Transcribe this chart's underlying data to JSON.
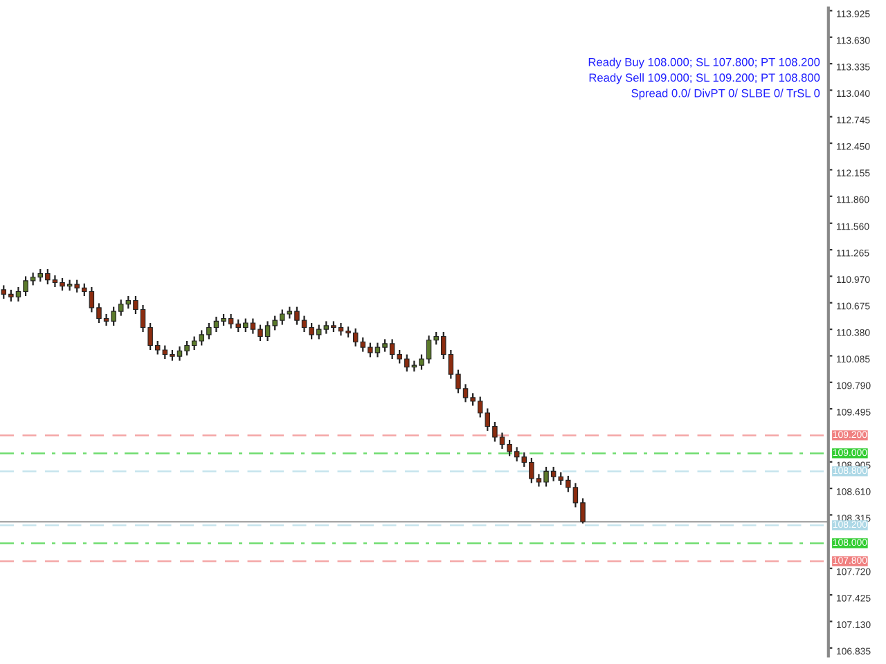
{
  "chart_data": {
    "type": "candlestick",
    "categories": [
      null,
      null,
      null,
      null,
      null,
      null,
      null,
      null,
      null,
      null,
      null,
      null,
      null,
      null,
      null,
      null,
      null,
      null,
      null,
      null,
      null,
      null,
      null,
      null,
      null,
      null,
      null,
      null,
      null,
      null,
      null,
      null,
      null,
      null,
      null,
      null,
      null,
      null,
      null,
      null,
      null,
      null,
      null,
      null,
      null,
      null,
      null,
      null,
      null,
      null,
      null,
      null,
      null,
      null,
      null,
      null,
      null,
      null,
      null,
      null,
      null,
      null,
      null,
      null,
      null,
      null,
      null,
      null,
      null,
      null,
      null,
      null,
      null,
      null,
      null,
      null,
      null,
      null,
      null,
      null,
      null,
      null,
      null,
      null,
      null,
      null,
      null,
      null,
      null,
      null,
      null,
      null,
      null,
      null,
      null,
      null,
      null,
      null,
      null,
      null,
      null,
      null,
      null,
      null,
      null,
      null,
      null,
      null,
      null,
      null,
      null,
      null,
      null
    ],
    "ohlc": [
      [
        110.82,
        110.87,
        110.72,
        110.77
      ],
      [
        110.77,
        110.82,
        110.69,
        110.74
      ],
      [
        110.74,
        110.85,
        110.69,
        110.8
      ],
      [
        110.8,
        110.97,
        110.75,
        110.92
      ],
      [
        110.92,
        111.01,
        110.87,
        110.96
      ],
      [
        110.96,
        111.05,
        110.91,
        111.0
      ],
      [
        111.0,
        111.05,
        110.88,
        110.93
      ],
      [
        110.93,
        110.98,
        110.85,
        110.9
      ],
      [
        110.9,
        110.95,
        110.81,
        110.86
      ],
      [
        110.86,
        110.93,
        110.81,
        110.88
      ],
      [
        110.88,
        110.93,
        110.79,
        110.84
      ],
      [
        110.84,
        110.89,
        110.75,
        110.8
      ],
      [
        110.8,
        110.85,
        110.57,
        110.62
      ],
      [
        110.62,
        110.67,
        110.45,
        110.5
      ],
      [
        110.5,
        110.55,
        110.42,
        110.47
      ],
      [
        110.47,
        110.63,
        110.42,
        110.58
      ],
      [
        110.58,
        110.71,
        110.53,
        110.66
      ],
      [
        110.66,
        110.75,
        110.61,
        110.7
      ],
      [
        110.7,
        110.75,
        110.55,
        110.6
      ],
      [
        110.6,
        110.65,
        110.35,
        110.4
      ],
      [
        110.4,
        110.45,
        110.15,
        110.2
      ],
      [
        110.2,
        110.25,
        110.1,
        110.15
      ],
      [
        110.15,
        110.2,
        110.05,
        110.1
      ],
      [
        110.1,
        110.15,
        110.03,
        110.08
      ],
      [
        110.08,
        110.19,
        110.03,
        110.14
      ],
      [
        110.14,
        110.25,
        110.09,
        110.2
      ],
      [
        110.2,
        110.3,
        110.15,
        110.25
      ],
      [
        110.25,
        110.37,
        110.2,
        110.32
      ],
      [
        110.32,
        110.45,
        110.27,
        110.4
      ],
      [
        110.4,
        110.52,
        110.35,
        110.47
      ],
      [
        110.47,
        110.55,
        110.42,
        110.5
      ],
      [
        110.5,
        110.55,
        110.39,
        110.44
      ],
      [
        110.44,
        110.49,
        110.35,
        110.4
      ],
      [
        110.4,
        110.5,
        110.35,
        110.45
      ],
      [
        110.45,
        110.5,
        110.33,
        110.38
      ],
      [
        110.38,
        110.43,
        110.25,
        110.3
      ],
      [
        110.3,
        110.47,
        110.25,
        110.42
      ],
      [
        110.42,
        110.53,
        110.37,
        110.48
      ],
      [
        110.48,
        110.6,
        110.43,
        110.55
      ],
      [
        110.55,
        110.63,
        110.5,
        110.58
      ],
      [
        110.58,
        110.63,
        110.43,
        110.48
      ],
      [
        110.48,
        110.53,
        110.35,
        110.4
      ],
      [
        110.4,
        110.45,
        110.27,
        110.32
      ],
      [
        110.32,
        110.43,
        110.27,
        110.38
      ],
      [
        110.38,
        110.47,
        110.33,
        110.42
      ],
      [
        110.42,
        110.47,
        110.35,
        110.4
      ],
      [
        110.4,
        110.45,
        110.31,
        110.36
      ],
      [
        110.36,
        110.41,
        110.29,
        110.34
      ],
      [
        110.34,
        110.39,
        110.19,
        110.24
      ],
      [
        110.24,
        110.29,
        110.13,
        110.18
      ],
      [
        110.18,
        110.23,
        110.07,
        110.12
      ],
      [
        110.12,
        110.23,
        110.07,
        110.18
      ],
      [
        110.18,
        110.27,
        110.13,
        110.22
      ],
      [
        110.22,
        110.27,
        110.05,
        110.1
      ],
      [
        110.1,
        110.15,
        110.0,
        110.05
      ],
      [
        110.05,
        110.1,
        109.91,
        109.96
      ],
      [
        109.96,
        110.03,
        109.91,
        109.98
      ],
      [
        109.98,
        110.1,
        109.93,
        110.05
      ],
      [
        110.05,
        110.31,
        110.0,
        110.26
      ],
      [
        110.26,
        110.35,
        110.21,
        110.3
      ],
      [
        110.3,
        110.35,
        110.05,
        110.1
      ],
      [
        110.1,
        110.15,
        109.83,
        109.88
      ],
      [
        109.88,
        109.93,
        109.67,
        109.72
      ],
      [
        109.72,
        109.77,
        109.57,
        109.62
      ],
      [
        109.62,
        109.67,
        109.53,
        109.58
      ],
      [
        109.58,
        109.63,
        109.4,
        109.45
      ],
      [
        109.45,
        109.5,
        109.25,
        109.3
      ],
      [
        109.3,
        109.35,
        109.13,
        109.18
      ],
      [
        109.18,
        109.23,
        109.05,
        109.1
      ],
      [
        109.1,
        109.15,
        108.97,
        109.02
      ],
      [
        109.02,
        109.07,
        108.91,
        108.96
      ],
      [
        108.96,
        109.01,
        108.85,
        108.9
      ],
      [
        108.9,
        108.95,
        108.67,
        108.72
      ],
      [
        108.72,
        108.77,
        108.63,
        108.68
      ],
      [
        108.68,
        108.85,
        108.63,
        108.8
      ],
      [
        108.8,
        108.85,
        108.69,
        108.74
      ],
      [
        108.74,
        108.79,
        108.65,
        108.7
      ],
      [
        108.7,
        108.75,
        108.57,
        108.62
      ],
      [
        108.62,
        108.67,
        108.4,
        108.45
      ],
      [
        108.45,
        108.5,
        108.22,
        108.24
      ],
      null,
      null,
      null,
      null,
      null,
      null,
      null,
      null,
      null,
      null,
      null,
      null,
      null,
      null,
      null,
      null,
      null,
      null,
      null,
      null,
      null,
      null,
      null,
      null,
      null,
      null,
      null,
      null,
      null,
      null,
      null,
      null,
      null
    ],
    "colors": [
      "#8b2c0f",
      "#8b2c0f",
      "#5b7a2b",
      "#5b7a2b",
      "#5b7a2b",
      "#5b7a2b",
      "#8b2c0f",
      "#8b2c0f",
      "#8b2c0f",
      "#5b7a2b",
      "#8b2c0f",
      "#8b2c0f",
      "#8b2c0f",
      "#8b2c0f",
      "#8b2c0f",
      "#5b7a2b",
      "#5b7a2b",
      "#5b7a2b",
      "#8b2c0f",
      "#8b2c0f",
      "#8b2c0f",
      "#8b2c0f",
      "#8b2c0f",
      "#8b2c0f",
      "#5b7a2b",
      "#5b7a2b",
      "#5b7a2b",
      "#5b7a2b",
      "#5b7a2b",
      "#5b7a2b",
      "#5b7a2b",
      "#8b2c0f",
      "#8b2c0f",
      "#5b7a2b",
      "#8b2c0f",
      "#8b2c0f",
      "#5b7a2b",
      "#5b7a2b",
      "#5b7a2b",
      "#5b7a2b",
      "#8b2c0f",
      "#8b2c0f",
      "#8b2c0f",
      "#5b7a2b",
      "#5b7a2b",
      "#8b2c0f",
      "#8b2c0f",
      "#8b2c0f",
      "#8b2c0f",
      "#8b2c0f",
      "#8b2c0f",
      "#5b7a2b",
      "#5b7a2b",
      "#8b2c0f",
      "#8b2c0f",
      "#8b2c0f",
      "#5b7a2b",
      "#5b7a2b",
      "#5b7a2b",
      "#5b7a2b",
      "#8b2c0f",
      "#8b2c0f",
      "#8b2c0f",
      "#8b2c0f",
      "#8b2c0f",
      "#8b2c0f",
      "#8b2c0f",
      "#8b2c0f",
      "#8b2c0f",
      "#8b2c0f",
      "#8b2c0f",
      "#8b2c0f",
      "#8b2c0f",
      "#8b2c0f",
      "#5b7a2b",
      "#8b2c0f",
      "#8b2c0f",
      "#8b2c0f",
      "#8b2c0f",
      "#8b2c0f",
      null,
      null,
      null,
      null,
      null,
      null,
      null,
      null,
      null,
      null,
      null,
      null,
      null,
      null,
      null,
      null,
      null,
      null,
      null,
      null,
      null,
      null,
      null,
      null,
      null,
      null,
      null,
      null,
      null,
      null,
      null,
      null,
      null
    ],
    "ylim": [
      106.745,
      113.955
    ],
    "yticks": [
      113.925,
      {
        "value": 113.63,
        "label": "113.630"
      },
      113.335,
      {
        "value": 113.04,
        "label": "113.040"
      },
      112.745,
      {
        "value": 112.45,
        "label": "112.450"
      },
      112.155,
      {
        "value": 111.86,
        "label": "111.860"
      },
      {
        "value": 111.56,
        "label": "111.560"
      },
      111.265,
      {
        "value": 110.97,
        "label": "110.970"
      },
      110.675,
      {
        "value": 110.38,
        "label": "110.380"
      },
      110.085,
      {
        "value": 109.79,
        "label": "109.790"
      },
      109.495,
      108.905,
      {
        "value": 108.61,
        "label": "108.610"
      },
      108.315,
      {
        "value": 107.72,
        "label": "107.720"
      },
      107.425,
      {
        "value": 107.13,
        "label": "107.130"
      },
      106.835
    ],
    "ref_lines": [
      {
        "axis": "y",
        "value": 109.2,
        "label": "109.200",
        "color": "#f08080",
        "line_style": "dashed"
      },
      {
        "axis": "y",
        "value": 109.0,
        "label": "109.000",
        "color": "#32cd32",
        "line_style": "dashdot"
      },
      {
        "axis": "y",
        "value": 108.8,
        "label": "108.800",
        "color": "#add8e6",
        "line_style": "dashed"
      },
      {
        "axis": "y",
        "value": 108.24,
        "color": "#a9a9a9",
        "line_style": "solid"
      },
      {
        "axis": "y",
        "value": 108.2,
        "label": "108.200",
        "color": "#add8e6",
        "line_style": "dashed"
      },
      {
        "axis": "y",
        "value": 108.0,
        "label": "108.000",
        "color": "#32cd32",
        "line_style": "dashdot"
      },
      {
        "axis": "y",
        "value": 107.8,
        "label": "107.800",
        "color": "#f08080",
        "line_style": "dashed"
      }
    ],
    "annotations": [
      "Ready Buy 108.000; SL 107.800; PT 108.200",
      "Ready Sell 109.000; SL 109.200; PT 108.800",
      "Spread 0.0/ DivPT 0/ SLBE 0/ TrSL 0"
    ],
    "grid": false
  }
}
